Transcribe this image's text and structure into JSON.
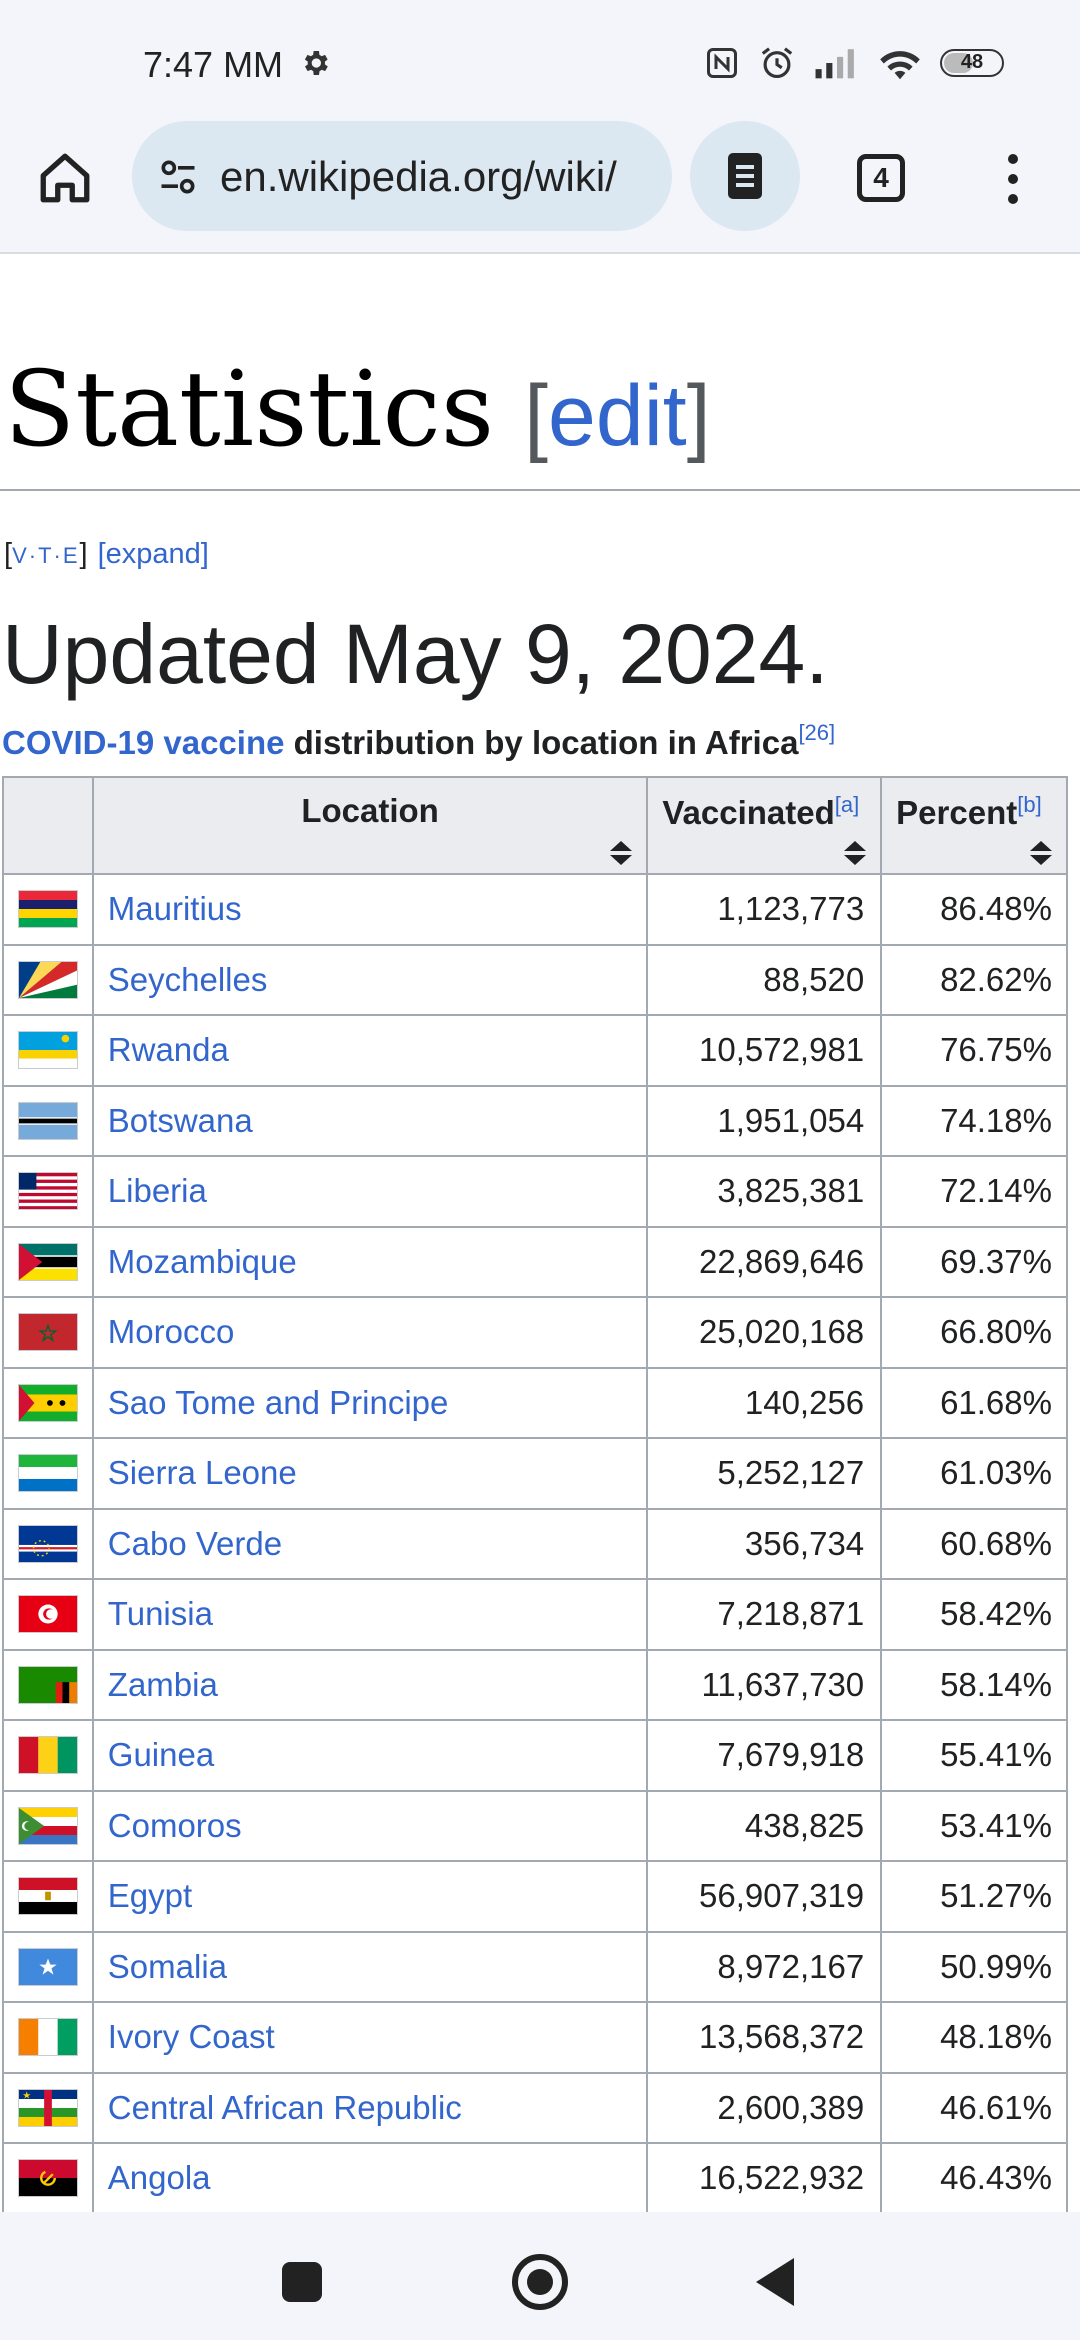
{
  "status_bar": {
    "time": "7:47 MM",
    "battery": "48"
  },
  "browser": {
    "url": "en.wikipedia.org/wiki/",
    "tab_count": "4"
  },
  "article": {
    "heading": "Statistics",
    "edit_open": "[",
    "edit_label": "edit",
    "edit_close": "]",
    "navbox_open": "[",
    "navbox_v": "V",
    "navbox_t": "T",
    "navbox_e": "E",
    "navbox_sep": "·",
    "navbox_close": "]",
    "expand": "[expand]",
    "updated": "Updated May 9, 2024.",
    "caption_link": "COVID-19 vaccine",
    "caption_text": " distribution by location in Africa",
    "caption_ref": "[26]"
  },
  "table": {
    "headers": {
      "location": "Location",
      "vaccinated": "Vaccinated",
      "vaccinated_ref": "[a]",
      "percent": "Percent",
      "percent_ref": "[b]"
    },
    "rows": [
      {
        "location": "Mauritius",
        "vaccinated": "1,123,773",
        "percent": "86.48%"
      },
      {
        "location": "Seychelles",
        "vaccinated": "88,520",
        "percent": "82.62%"
      },
      {
        "location": "Rwanda",
        "vaccinated": "10,572,981",
        "percent": "76.75%"
      },
      {
        "location": "Botswana",
        "vaccinated": "1,951,054",
        "percent": "74.18%"
      },
      {
        "location": "Liberia",
        "vaccinated": "3,825,381",
        "percent": "72.14%"
      },
      {
        "location": "Mozambique",
        "vaccinated": "22,869,646",
        "percent": "69.37%"
      },
      {
        "location": "Morocco",
        "vaccinated": "25,020,168",
        "percent": "66.80%"
      },
      {
        "location": "Sao Tome and Principe",
        "vaccinated": "140,256",
        "percent": "61.68%"
      },
      {
        "location": "Sierra Leone",
        "vaccinated": "5,252,127",
        "percent": "61.03%"
      },
      {
        "location": "Cabo Verde",
        "vaccinated": "356,734",
        "percent": "60.68%"
      },
      {
        "location": "Tunisia",
        "vaccinated": "7,218,871",
        "percent": "58.42%"
      },
      {
        "location": "Zambia",
        "vaccinated": "11,637,730",
        "percent": "58.14%"
      },
      {
        "location": "Guinea",
        "vaccinated": "7,679,918",
        "percent": "55.41%"
      },
      {
        "location": "Comoros",
        "vaccinated": "438,825",
        "percent": "53.41%"
      },
      {
        "location": "Egypt",
        "vaccinated": "56,907,319",
        "percent": "51.27%"
      },
      {
        "location": "Somalia",
        "vaccinated": "8,972,167",
        "percent": "50.99%"
      },
      {
        "location": "Ivory Coast",
        "vaccinated": "13,568,372",
        "percent": "48.18%"
      },
      {
        "location": "Central African Republic",
        "vaccinated": "2,600,389",
        "percent": "46.61%"
      },
      {
        "location": "Angola",
        "vaccinated": "16,522,932",
        "percent": "46.43%"
      }
    ]
  },
  "colors": {
    "link": "#3366cc",
    "header_bg": "#eaecf0",
    "border": "#a2a9b1",
    "chrome_bg": "#f3f5fb",
    "pill_bg": "#dce8f1"
  },
  "icons": {
    "status": [
      "gear-icon",
      "nfc-icon",
      "alarm-icon",
      "signal-icon",
      "wifi-icon",
      "battery-icon"
    ],
    "toolbar": [
      "home-icon",
      "tune-icon",
      "reader-mode-icon",
      "tabs-icon",
      "more-vert-icon"
    ],
    "navigation": [
      "recents-square-icon",
      "home-circle-icon",
      "back-triangle-icon"
    ]
  }
}
